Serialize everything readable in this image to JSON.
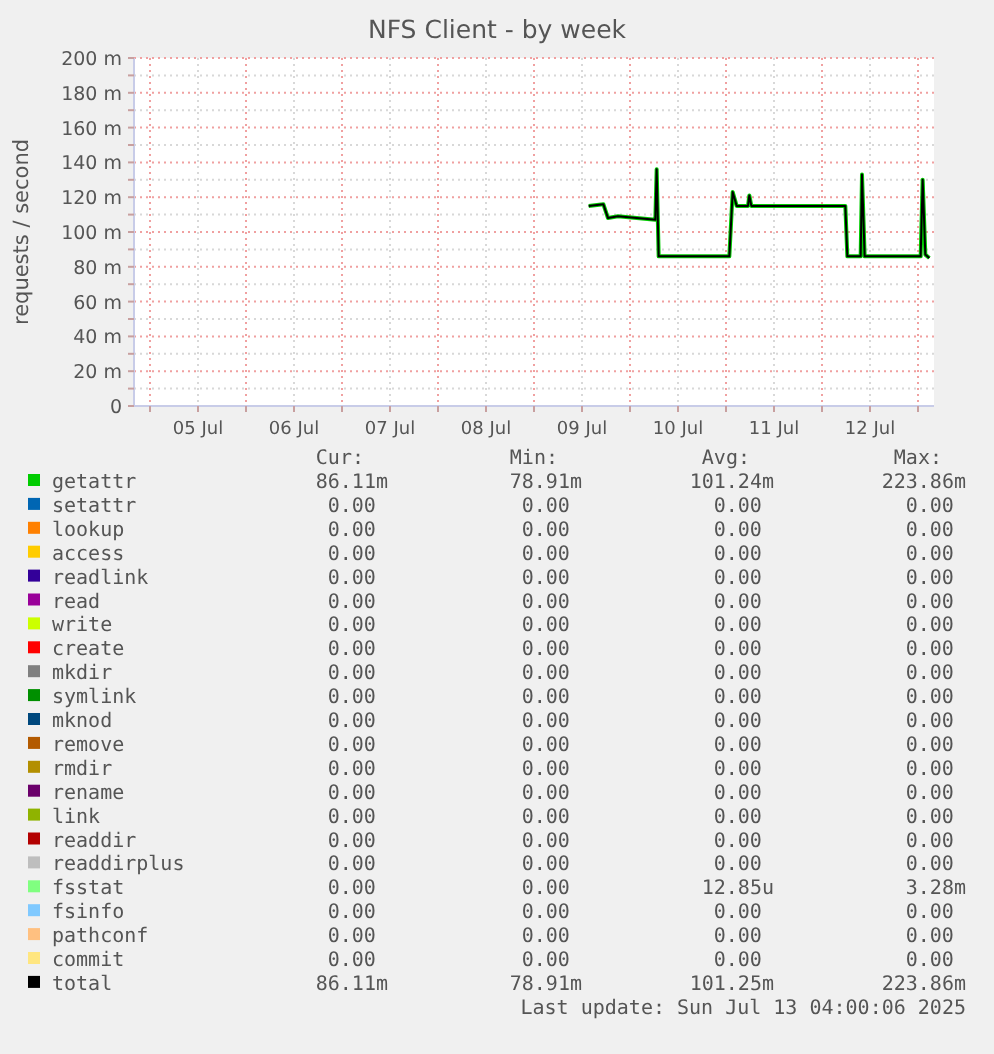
{
  "chart_data": {
    "type": "line",
    "title": "NFS Client - by week",
    "ylabel": "requests / second",
    "legend": "bottom",
    "grid": true,
    "xlim": [
      "2025-07-04T20:00",
      "2025-07-13T04:00"
    ],
    "xticks": [
      {
        "value": "2025-07-05T00:00",
        "label": null
      },
      {
        "value": "2025-07-05T12:00",
        "label": "05 Jul"
      },
      {
        "value": "2025-07-06T00:00",
        "label": null
      },
      {
        "value": "2025-07-06T12:00",
        "label": "06 Jul"
      },
      {
        "value": "2025-07-07T00:00",
        "label": null
      },
      {
        "value": "2025-07-07T12:00",
        "label": "07 Jul"
      },
      {
        "value": "2025-07-08T00:00",
        "label": null
      },
      {
        "value": "2025-07-08T12:00",
        "label": "08 Jul"
      },
      {
        "value": "2025-07-09T00:00",
        "label": null
      },
      {
        "value": "2025-07-09T12:00",
        "label": "09 Jul"
      },
      {
        "value": "2025-07-10T00:00",
        "label": null
      },
      {
        "value": "2025-07-10T12:00",
        "label": "10 Jul"
      },
      {
        "value": "2025-07-11T00:00",
        "label": null
      },
      {
        "value": "2025-07-11T12:00",
        "label": "11 Jul"
      },
      {
        "value": "2025-07-12T00:00",
        "label": null
      },
      {
        "value": "2025-07-12T12:00",
        "label": "12 Jul"
      },
      {
        "value": "2025-07-13T00:00",
        "label": null
      }
    ],
    "ylim": [
      0,
      200
    ],
    "yticks": [
      {
        "value": 0,
        "label": "0"
      },
      {
        "value": 10,
        "label": null
      },
      {
        "value": 20,
        "label": "20 m"
      },
      {
        "value": 30,
        "label": null
      },
      {
        "value": 40,
        "label": "40 m"
      },
      {
        "value": 50,
        "label": null
      },
      {
        "value": 60,
        "label": "60 m"
      },
      {
        "value": 70,
        "label": null
      },
      {
        "value": 80,
        "label": "80 m"
      },
      {
        "value": 90,
        "label": null
      },
      {
        "value": 100,
        "label": "100 m"
      },
      {
        "value": 110,
        "label": null
      },
      {
        "value": 120,
        "label": "120 m"
      },
      {
        "value": 130,
        "label": null
      },
      {
        "value": 140,
        "label": "140 m"
      },
      {
        "value": 150,
        "label": null
      },
      {
        "value": 160,
        "label": "160 m"
      },
      {
        "value": 170,
        "label": null
      },
      {
        "value": 180,
        "label": "180 m"
      },
      {
        "value": 190,
        "label": null
      },
      {
        "value": 200,
        "label": "200 m"
      }
    ],
    "series": [
      {
        "name": "getattr",
        "color": "#00cc00",
        "x": [
          "2025-07-09T13:40",
          "2025-07-09T17:20",
          "2025-07-09T18:30",
          "2025-07-09T21:00",
          "2025-07-10T06:20",
          "2025-07-10T06:40",
          "2025-07-10T07:10",
          "2025-07-11T00:50",
          "2025-07-11T01:40",
          "2025-07-11T02:40",
          "2025-07-11T05:30",
          "2025-07-11T05:50",
          "2025-07-11T06:20",
          "2025-07-12T05:50",
          "2025-07-12T06:20",
          "2025-07-12T09:40",
          "2025-07-12T10:00",
          "2025-07-12T10:40",
          "2025-07-13T00:40",
          "2025-07-13T01:10",
          "2025-07-13T01:50",
          "2025-07-13T02:50"
        ],
        "values": [
          115,
          116,
          108,
          109,
          107,
          136,
          86,
          86,
          123,
          115,
          115,
          121,
          115,
          115,
          86,
          86,
          133,
          86,
          86,
          130,
          87,
          85
        ]
      },
      {
        "name": "setattr",
        "color": "#0066b3"
      },
      {
        "name": "lookup",
        "color": "#ff8000"
      },
      {
        "name": "access",
        "color": "#ffcc00"
      },
      {
        "name": "readlink",
        "color": "#330099"
      },
      {
        "name": "read",
        "color": "#990099"
      },
      {
        "name": "write",
        "color": "#ccff00"
      },
      {
        "name": "create",
        "color": "#ff0000"
      },
      {
        "name": "mkdir",
        "color": "#808080"
      },
      {
        "name": "symlink",
        "color": "#008f00"
      },
      {
        "name": "mknod",
        "color": "#00487d"
      },
      {
        "name": "remove",
        "color": "#b35a00"
      },
      {
        "name": "rmdir",
        "color": "#b38f00"
      },
      {
        "name": "rename",
        "color": "#6b006b"
      },
      {
        "name": "link",
        "color": "#8fb300"
      },
      {
        "name": "readdir",
        "color": "#b30000"
      },
      {
        "name": "readdirplus",
        "color": "#bebebe"
      },
      {
        "name": "fsstat",
        "color": "#80ff80"
      },
      {
        "name": "fsinfo",
        "color": "#80c9ff"
      },
      {
        "name": "pathconf",
        "color": "#ffc080"
      },
      {
        "name": "commit",
        "color": "#ffe680"
      },
      {
        "name": "total",
        "color": "#000000",
        "x": [
          "2025-07-09T13:40",
          "2025-07-09T17:20",
          "2025-07-09T18:30",
          "2025-07-09T21:00",
          "2025-07-10T06:20",
          "2025-07-10T06:40",
          "2025-07-10T07:10",
          "2025-07-11T00:50",
          "2025-07-11T01:40",
          "2025-07-11T02:40",
          "2025-07-11T05:30",
          "2025-07-11T05:50",
          "2025-07-11T06:20",
          "2025-07-12T05:50",
          "2025-07-12T06:20",
          "2025-07-12T09:40",
          "2025-07-12T10:00",
          "2025-07-12T10:40",
          "2025-07-13T00:40",
          "2025-07-13T01:10",
          "2025-07-13T01:50",
          "2025-07-13T02:50"
        ],
        "values": [
          115,
          116,
          108,
          109,
          107,
          136,
          86,
          86,
          123,
          115,
          115,
          121,
          115,
          115,
          86,
          86,
          133,
          86,
          86,
          130,
          87,
          85
        ]
      }
    ],
    "annotations": [
      "Cur:",
      "Min:",
      "Avg:",
      "Max:",
      "86.11m",
      "78.91m",
      "101.24m",
      "223.86m",
      "0.00",
      "0.00",
      "0.00",
      "0.00",
      "0.00",
      "0.00",
      "0.00",
      "0.00",
      "0.00",
      "0.00",
      "0.00",
      "0.00",
      "0.00",
      "0.00",
      "0.00",
      "0.00",
      "0.00",
      "0.00",
      "0.00",
      "0.00",
      "0.00",
      "0.00",
      "0.00",
      "0.00",
      "0.00",
      "0.00",
      "0.00",
      "0.00",
      "0.00",
      "0.00",
      "0.00",
      "0.00",
      "0.00",
      "0.00",
      "0.00",
      "0.00",
      "0.00",
      "0.00",
      "0.00",
      "0.00",
      "0.00",
      "0.00",
      "0.00",
      "0.00",
      "0.00",
      "0.00",
      "0.00",
      "0.00",
      "0.00",
      "0.00",
      "0.00",
      "0.00",
      "0.00",
      "0.00",
      "0.00",
      "0.00",
      "0.00",
      "0.00",
      "0.00",
      "0.00",
      "0.00",
      "0.00",
      "0.00",
      "0.00",
      "0.00",
      "0.00",
      "12.85u",
      "3.28m",
      "0.00",
      "0.00",
      "0.00",
      "0.00",
      "0.00",
      "0.00",
      "0.00",
      "0.00",
      "0.00",
      "0.00",
      "0.00",
      "0.00",
      "86.11m",
      "78.91m",
      "101.25m",
      "223.86m",
      "Last update: Sun Jul 13 04:00:06 2025"
    ]
  }
}
